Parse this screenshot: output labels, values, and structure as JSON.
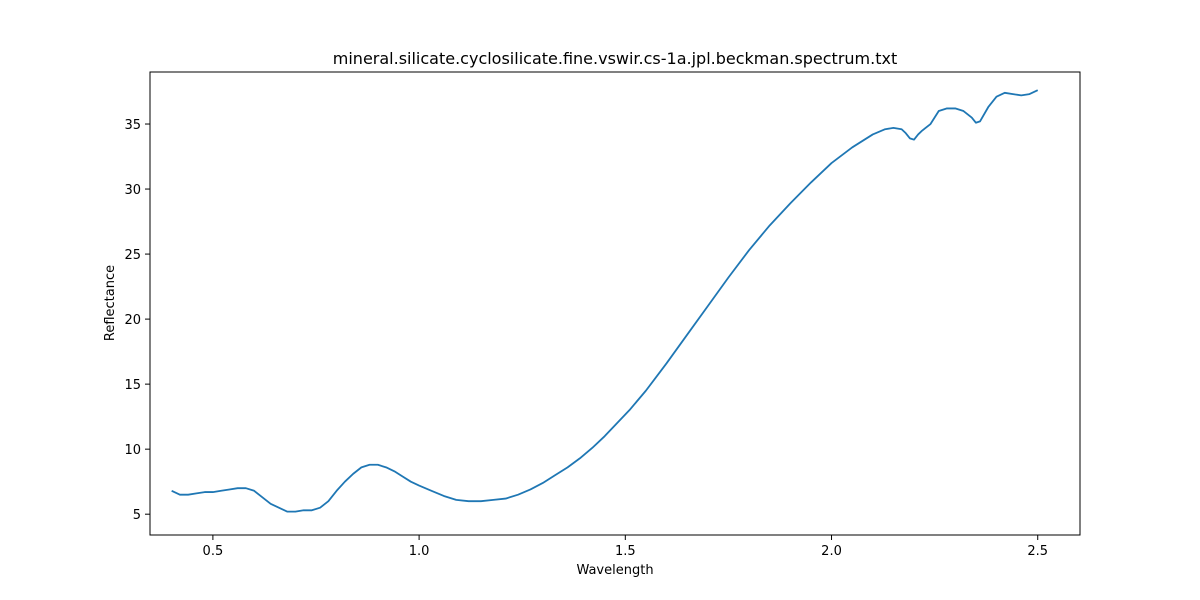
{
  "chart_data": {
    "type": "line",
    "title": "mineral.silicate.cyclosilicate.fine.vswir.cs-1a.jpl.beckman.spectrum.txt",
    "xlabel": "Wavelength",
    "ylabel": "Reflectance",
    "xlim": [
      0.3475,
      2.6025
    ],
    "ylim": [
      3.4,
      39.0
    ],
    "xticks": [
      0.5,
      1.0,
      1.5,
      2.0,
      2.5
    ],
    "xtick_labels": [
      "0.5",
      "1.0",
      "1.5",
      "2.0",
      "2.5"
    ],
    "yticks": [
      5,
      10,
      15,
      20,
      25,
      30,
      35
    ],
    "ytick_labels": [
      "5",
      "10",
      "15",
      "20",
      "25",
      "30",
      "35"
    ],
    "grid": false,
    "series": [
      {
        "color": "#1f77b4",
        "x": [
          0.4,
          0.42,
          0.44,
          0.46,
          0.48,
          0.5,
          0.52,
          0.54,
          0.56,
          0.58,
          0.6,
          0.62,
          0.64,
          0.66,
          0.68,
          0.7,
          0.72,
          0.74,
          0.76,
          0.78,
          0.8,
          0.82,
          0.84,
          0.86,
          0.88,
          0.9,
          0.92,
          0.94,
          0.96,
          0.98,
          1.0,
          1.03,
          1.06,
          1.09,
          1.12,
          1.15,
          1.18,
          1.21,
          1.24,
          1.27,
          1.3,
          1.33,
          1.36,
          1.39,
          1.42,
          1.45,
          1.48,
          1.51,
          1.55,
          1.6,
          1.65,
          1.7,
          1.75,
          1.8,
          1.85,
          1.9,
          1.95,
          2.0,
          2.05,
          2.1,
          2.13,
          2.15,
          2.17,
          2.18,
          2.19,
          2.2,
          2.21,
          2.22,
          2.24,
          2.26,
          2.28,
          2.3,
          2.32,
          2.34,
          2.35,
          2.36,
          2.38,
          2.4,
          2.42,
          2.44,
          2.46,
          2.48,
          2.5
        ],
        "y": [
          6.8,
          6.5,
          6.5,
          6.6,
          6.7,
          6.7,
          6.8,
          6.9,
          7.0,
          7.0,
          6.8,
          6.3,
          5.8,
          5.5,
          5.2,
          5.2,
          5.3,
          5.3,
          5.5,
          6.0,
          6.8,
          7.5,
          8.1,
          8.6,
          8.8,
          8.8,
          8.6,
          8.3,
          7.9,
          7.5,
          7.2,
          6.8,
          6.4,
          6.1,
          6.0,
          6.0,
          6.1,
          6.2,
          6.5,
          6.9,
          7.4,
          8.0,
          8.6,
          9.3,
          10.1,
          11.0,
          12.0,
          13.0,
          14.5,
          16.6,
          18.8,
          21.0,
          23.2,
          25.3,
          27.2,
          28.9,
          30.5,
          32.0,
          33.2,
          34.2,
          34.6,
          34.7,
          34.6,
          34.3,
          33.9,
          33.8,
          34.2,
          34.5,
          35.0,
          36.0,
          36.2,
          36.2,
          36.0,
          35.5,
          35.1,
          35.2,
          36.3,
          37.1,
          37.4,
          37.3,
          37.2,
          37.3,
          37.6
        ]
      }
    ]
  }
}
